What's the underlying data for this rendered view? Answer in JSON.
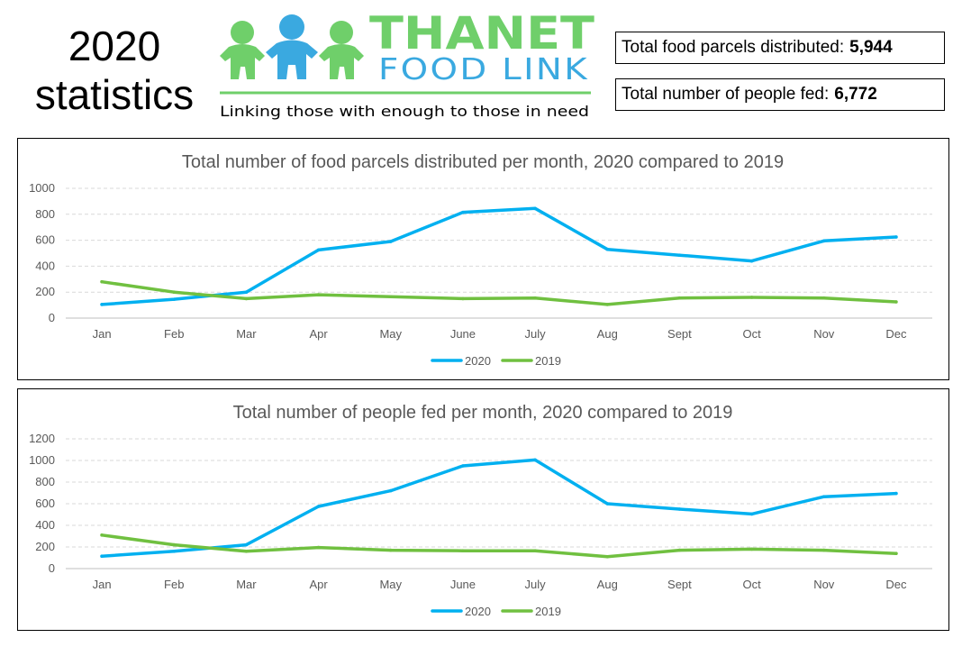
{
  "header": {
    "title_line1": "2020",
    "title_line2": "statistics"
  },
  "logo": {
    "name_line1": "THANET",
    "name_line2": "FOOD LINK",
    "tagline": "Linking those with enough to those in need",
    "colors": {
      "green": "#6fcf6a",
      "blue": "#3aa9e0"
    },
    "icon": "three-people-holding-hands-icon"
  },
  "stats": [
    {
      "label": "Total food parcels distributed:",
      "value": "5,944"
    },
    {
      "label": "Total number of people fed:",
      "value": "6,772"
    }
  ],
  "chart_data": [
    {
      "type": "line",
      "title": "Total number of food parcels distributed per month, 2020 compared to 2019",
      "categories": [
        "Jan",
        "Feb",
        "Mar",
        "Apr",
        "May",
        "June",
        "July",
        "Aug",
        "Sept",
        "Oct",
        "Nov",
        "Dec"
      ],
      "ylim": [
        0,
        1000
      ],
      "yticks": [
        0,
        200,
        400,
        600,
        800,
        1000
      ],
      "grid": true,
      "legend": "bottom",
      "series": [
        {
          "name": "2020",
          "color": "#00b0f0",
          "values": [
            105,
            145,
            200,
            525,
            590,
            815,
            845,
            530,
            485,
            440,
            595,
            625
          ]
        },
        {
          "name": "2019",
          "color": "#70c040",
          "values": [
            280,
            200,
            150,
            180,
            165,
            150,
            155,
            105,
            155,
            160,
            155,
            125
          ]
        }
      ]
    },
    {
      "type": "line",
      "title": "Total number of people fed per month, 2020 compared to 2019",
      "categories": [
        "Jan",
        "Feb",
        "Mar",
        "Apr",
        "May",
        "June",
        "July",
        "Aug",
        "Sept",
        "Oct",
        "Nov",
        "Dec"
      ],
      "ylim": [
        0,
        1200
      ],
      "yticks": [
        0,
        200,
        400,
        600,
        800,
        1000,
        1200
      ],
      "grid": true,
      "legend": "bottom",
      "series": [
        {
          "name": "2020",
          "color": "#00b0f0",
          "values": [
            115,
            160,
            220,
            575,
            720,
            950,
            1005,
            600,
            550,
            505,
            665,
            695
          ]
        },
        {
          "name": "2019",
          "color": "#70c040",
          "values": [
            310,
            220,
            160,
            195,
            170,
            165,
            165,
            110,
            170,
            180,
            170,
            140
          ]
        }
      ]
    }
  ]
}
